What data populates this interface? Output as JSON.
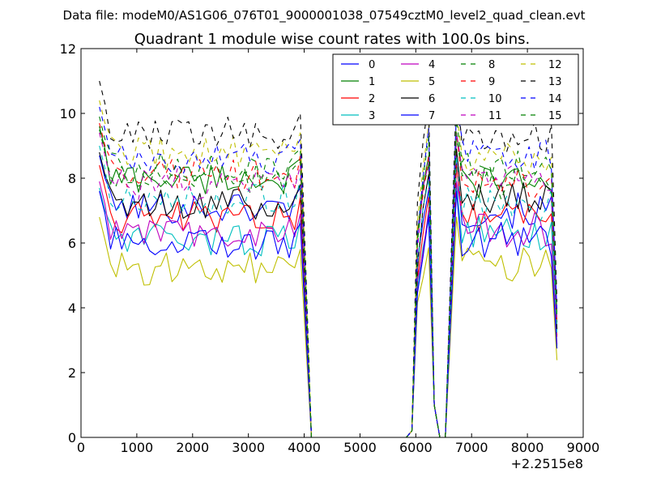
{
  "figure": {
    "suptitle": "Data file: modeM0/AS1G06_076T01_9000001038_07549cztM0_level2_quad_clean.evt"
  },
  "chart_data": {
    "type": "line",
    "title": "Quadrant 1 module wise count rates with 100.0s bins.",
    "xlabel": "",
    "ylabel": "",
    "xlim": [
      0,
      9000
    ],
    "ylim": [
      0,
      12
    ],
    "x_offset_label": "+2.2515e8",
    "x_ticks": [
      0,
      1000,
      2000,
      3000,
      4000,
      5000,
      6000,
      7000,
      8000,
      9000
    ],
    "x_tick_labels": [
      "0",
      "1000",
      "2000",
      "3000",
      "4000",
      "5000",
      "6000",
      "7000",
      "8000",
      "9000"
    ],
    "y_ticks": [
      0,
      2,
      4,
      6,
      8,
      10,
      12
    ],
    "y_tick_labels": [
      "0",
      "2",
      "4",
      "6",
      "8",
      "10",
      "12"
    ],
    "legend_position": "top-right",
    "legend_columns": 4,
    "segments": [
      {
        "start": 330,
        "count": 38
      },
      {
        "start": 5930,
        "count": 7
      },
      {
        "start": 6730,
        "count": 19
      }
    ],
    "gap_zero_x": [
      4130,
      4230,
      4330,
      4430,
      4530,
      4630,
      4730,
      4830,
      4930,
      5030,
      5130,
      5230,
      5330,
      5430,
      5530,
      5630,
      5730,
      5830
    ],
    "series": [
      {
        "name": "0",
        "color": "#0000ff",
        "dash": "solid",
        "base": 7.1,
        "second": 7.0
      },
      {
        "name": "1",
        "color": "#008000",
        "dash": "solid",
        "base": 8.0,
        "second": 7.9
      },
      {
        "name": "2",
        "color": "#ff0000",
        "dash": "solid",
        "base": 6.8,
        "second": 6.9
      },
      {
        "name": "3",
        "color": "#00bfbf",
        "dash": "solid",
        "base": 6.1,
        "second": 6.3
      },
      {
        "name": "4",
        "color": "#bf00bf",
        "dash": "solid",
        "base": 6.3,
        "second": 6.4
      },
      {
        "name": "5",
        "color": "#bfbf00",
        "dash": "solid",
        "base": 5.2,
        "second": 5.3
      },
      {
        "name": "6",
        "color": "#000000",
        "dash": "solid",
        "base": 7.2,
        "second": 7.4
      },
      {
        "name": "7",
        "color": "#0000ff",
        "dash": "solid",
        "base": 6.0,
        "second": 6.1
      },
      {
        "name": "8",
        "color": "#008000",
        "dash": "dashed",
        "base": 7.9,
        "second": 7.8
      },
      {
        "name": "9",
        "color": "#ff0000",
        "dash": "dashed",
        "base": 8.1,
        "second": 7.9
      },
      {
        "name": "10",
        "color": "#00bfbf",
        "dash": "dashed",
        "base": 7.4,
        "second": 7.2
      },
      {
        "name": "11",
        "color": "#bf00bf",
        "dash": "dashed",
        "base": 7.8,
        "second": 7.9
      },
      {
        "name": "12",
        "color": "#bfbf00",
        "dash": "dashed",
        "base": 8.8,
        "second": 8.6
      },
      {
        "name": "13",
        "color": "#000000",
        "dash": "dashed",
        "base": 9.4,
        "second": 9.3
      },
      {
        "name": "14",
        "color": "#0000ff",
        "dash": "dashed",
        "base": 8.6,
        "second": 8.7
      },
      {
        "name": "15",
        "color": "#008000",
        "dash": "dashed",
        "base": 8.3,
        "second": 8.3
      }
    ]
  }
}
